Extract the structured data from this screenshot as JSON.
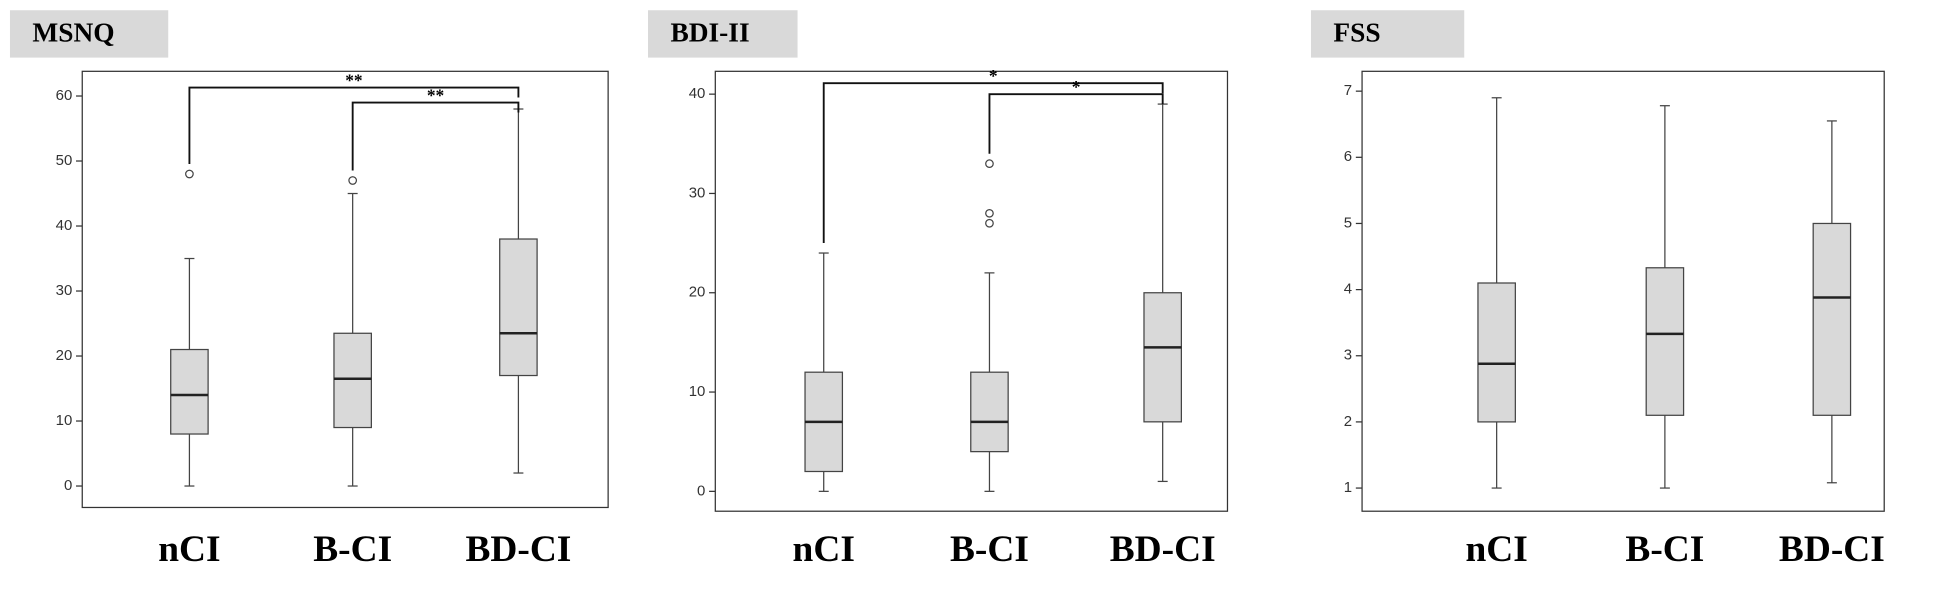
{
  "chart_data": [
    {
      "type": "box",
      "title": "MSNQ",
      "categories": [
        "nCI",
        "B-CI",
        "BD-CI"
      ],
      "boxes": [
        {
          "min": 0,
          "q1": 8,
          "median": 14,
          "q3": 21,
          "max": 35,
          "outliers": [
            48
          ]
        },
        {
          "min": 0,
          "q1": 9,
          "median": 16.5,
          "q3": 23.5,
          "max": 45,
          "outliers": [
            47
          ]
        },
        {
          "min": 2,
          "q1": 17,
          "median": 23.5,
          "q3": 38,
          "max": 58,
          "outliers": []
        }
      ],
      "significance": [
        {
          "from": 0,
          "to": 2,
          "y": 61.3,
          "label": "**"
        },
        {
          "from": 1,
          "to": 2,
          "y": 59,
          "label": "**"
        }
      ],
      "ylim": [
        -3.3,
        63.8
      ],
      "yticks": [
        0,
        10,
        20,
        30,
        40,
        50,
        60
      ],
      "color": "#d9d9d9"
    },
    {
      "type": "box",
      "title": "BDI-II",
      "categories": [
        "nCI",
        "B-CI",
        "BD-CI"
      ],
      "boxes": [
        {
          "min": 0,
          "q1": 2,
          "median": 7,
          "q3": 12,
          "max": 24,
          "outliers": []
        },
        {
          "min": 0,
          "q1": 4,
          "median": 7,
          "q3": 12,
          "max": 22,
          "outliers": [
            27,
            28,
            33
          ]
        },
        {
          "min": 1,
          "q1": 7,
          "median": 14.5,
          "q3": 20,
          "max": 39,
          "outliers": []
        }
      ],
      "significance": [
        {
          "from": 0,
          "to": 2,
          "y": 41.1,
          "label": "*"
        },
        {
          "from": 1,
          "to": 2,
          "y": 40,
          "label": "*"
        }
      ],
      "ylim": [
        -2,
        42.3
      ],
      "yticks": [
        0,
        10,
        20,
        30,
        40
      ],
      "color": "#d9d9d9"
    },
    {
      "type": "box",
      "title": "FSS",
      "categories": [
        "nCI",
        "B-CI",
        "BD-CI"
      ],
      "boxes": [
        {
          "min": 1,
          "q1": 2,
          "median": 2.88,
          "q3": 4.1,
          "max": 6.9,
          "outliers": []
        },
        {
          "min": 1,
          "q1": 2.1,
          "median": 3.33,
          "q3": 4.33,
          "max": 6.78,
          "outliers": []
        },
        {
          "min": 1.08,
          "q1": 2.1,
          "median": 3.88,
          "q3": 5,
          "max": 6.55,
          "outliers": []
        }
      ],
      "significance": [],
      "ylim": [
        0.65,
        7.3
      ],
      "yticks": [
        1,
        2,
        3,
        4,
        5,
        6,
        7
      ],
      "color": "#d9d9d9"
    }
  ]
}
